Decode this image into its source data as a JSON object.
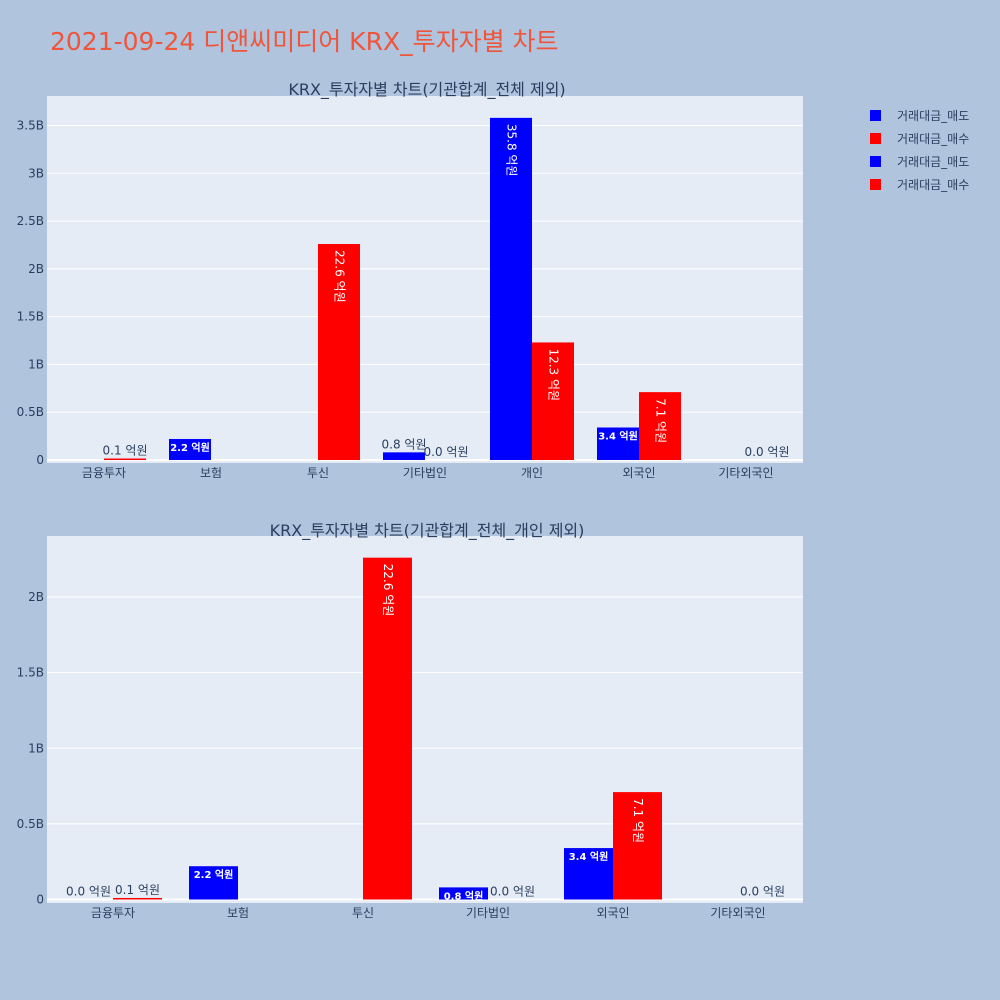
{
  "title": "2021-09-24 디앤씨미디어 KRX_투자자별 차트",
  "colors": {
    "sell": "#0000ff",
    "buy": "#ff0000",
    "plot_bg": "#e5ecf6",
    "paper_bg": "#b0c4de",
    "title": "#ef553b"
  },
  "legend": [
    {
      "label": "거래대금_매도",
      "color": "#0000ff"
    },
    {
      "label": "거래대금_매수",
      "color": "#ff0000"
    },
    {
      "label": "거래대금_매도",
      "color": "#0000ff"
    },
    {
      "label": "거래대금_매수",
      "color": "#ff0000"
    }
  ],
  "chart_data": [
    {
      "type": "bar",
      "title": "KRX_투자자별 차트(기관합계_전체 제외)",
      "categories": [
        "금융투자",
        "보험",
        "투신",
        "기타법인",
        "개인",
        "외국인",
        "기타외국인"
      ],
      "series": [
        {
          "name": "거래대금_매도",
          "values": [
            0,
            22000000,
            0,
            8000000,
            358000000,
            34000000,
            0
          ],
          "labels": [
            "",
            "2.2 억원",
            "",
            "0.8 억원",
            "35.8 억원",
            "3.4 억원",
            ""
          ]
        },
        {
          "name": "거래대금_매수",
          "values": [
            1000000,
            0,
            226000000,
            0,
            123000000,
            71000000,
            0
          ],
          "labels": [
            "0.1 억원",
            "",
            "22.6 억원",
            "0.0 억원",
            "12.3 억원",
            "7.1 억원",
            "0.0 억원"
          ]
        }
      ],
      "ylim": [
        0,
        380000000
      ],
      "yticks": [
        0,
        50000000,
        100000000,
        150000000,
        200000000,
        250000000,
        300000000,
        350000000
      ],
      "ytick_labels": [
        "0",
        "0.5B",
        "1B",
        "1.5B",
        "2B",
        "2.5B",
        "3B",
        "3.5B"
      ],
      "grid": true,
      "legend_position": "top-right"
    },
    {
      "type": "bar",
      "title": "KRX_투자자별 차트(기관합계_전체_개인 제외)",
      "categories": [
        "금융투자",
        "보험",
        "투신",
        "기타법인",
        "외국인",
        "기타외국인"
      ],
      "series": [
        {
          "name": "거래대금_매도",
          "values": [
            0,
            22000000,
            0,
            8000000,
            34000000,
            0
          ],
          "labels": [
            "0.0 억원",
            "2.2 억원",
            "",
            "0.8 억원",
            "3.4 억원",
            ""
          ]
        },
        {
          "name": "거래대금_매수",
          "values": [
            1000000,
            0,
            226000000,
            0,
            71000000,
            0
          ],
          "labels": [
            "0.1 억원",
            "",
            "22.6 억원",
            "0.0 억원",
            "7.1 억원",
            "0.0 억원"
          ]
        }
      ],
      "ylim": [
        0,
        240000000
      ],
      "yticks": [
        0,
        50000000,
        100000000,
        150000000,
        200000000
      ],
      "ytick_labels": [
        "0",
        "0.5B",
        "1B",
        "1.5B",
        "2B"
      ],
      "grid": true,
      "legend_position": "top-right"
    }
  ]
}
